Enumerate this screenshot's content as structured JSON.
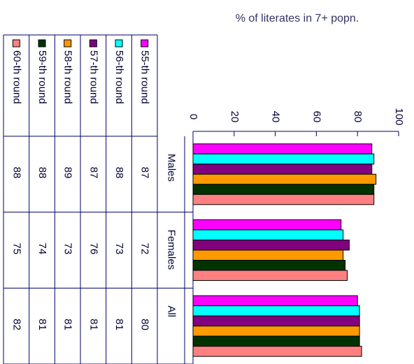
{
  "chart_data": {
    "type": "bar",
    "title": "% of literates in 7+ popn.",
    "categories": [
      "Males",
      "Females",
      "All"
    ],
    "series": [
      {
        "name": "55-th round",
        "color": "#ff00ff",
        "values": [
          87,
          72,
          80
        ]
      },
      {
        "name": "56-th round",
        "color": "#00ffff",
        "values": [
          88,
          73,
          81
        ]
      },
      {
        "name": "57-th round",
        "color": "#800080",
        "values": [
          87,
          76,
          81
        ]
      },
      {
        "name": "58-th round",
        "color": "#ff9900",
        "values": [
          89,
          73,
          81
        ]
      },
      {
        "name": "59-th round",
        "color": "#003300",
        "values": [
          88,
          74,
          81
        ]
      },
      {
        "name": "60-th round",
        "color": "#ff8080",
        "values": [
          88,
          75,
          82
        ]
      }
    ],
    "ylim": [
      0,
      100
    ],
    "yticks": [
      0,
      20,
      40,
      60,
      80,
      100
    ]
  }
}
